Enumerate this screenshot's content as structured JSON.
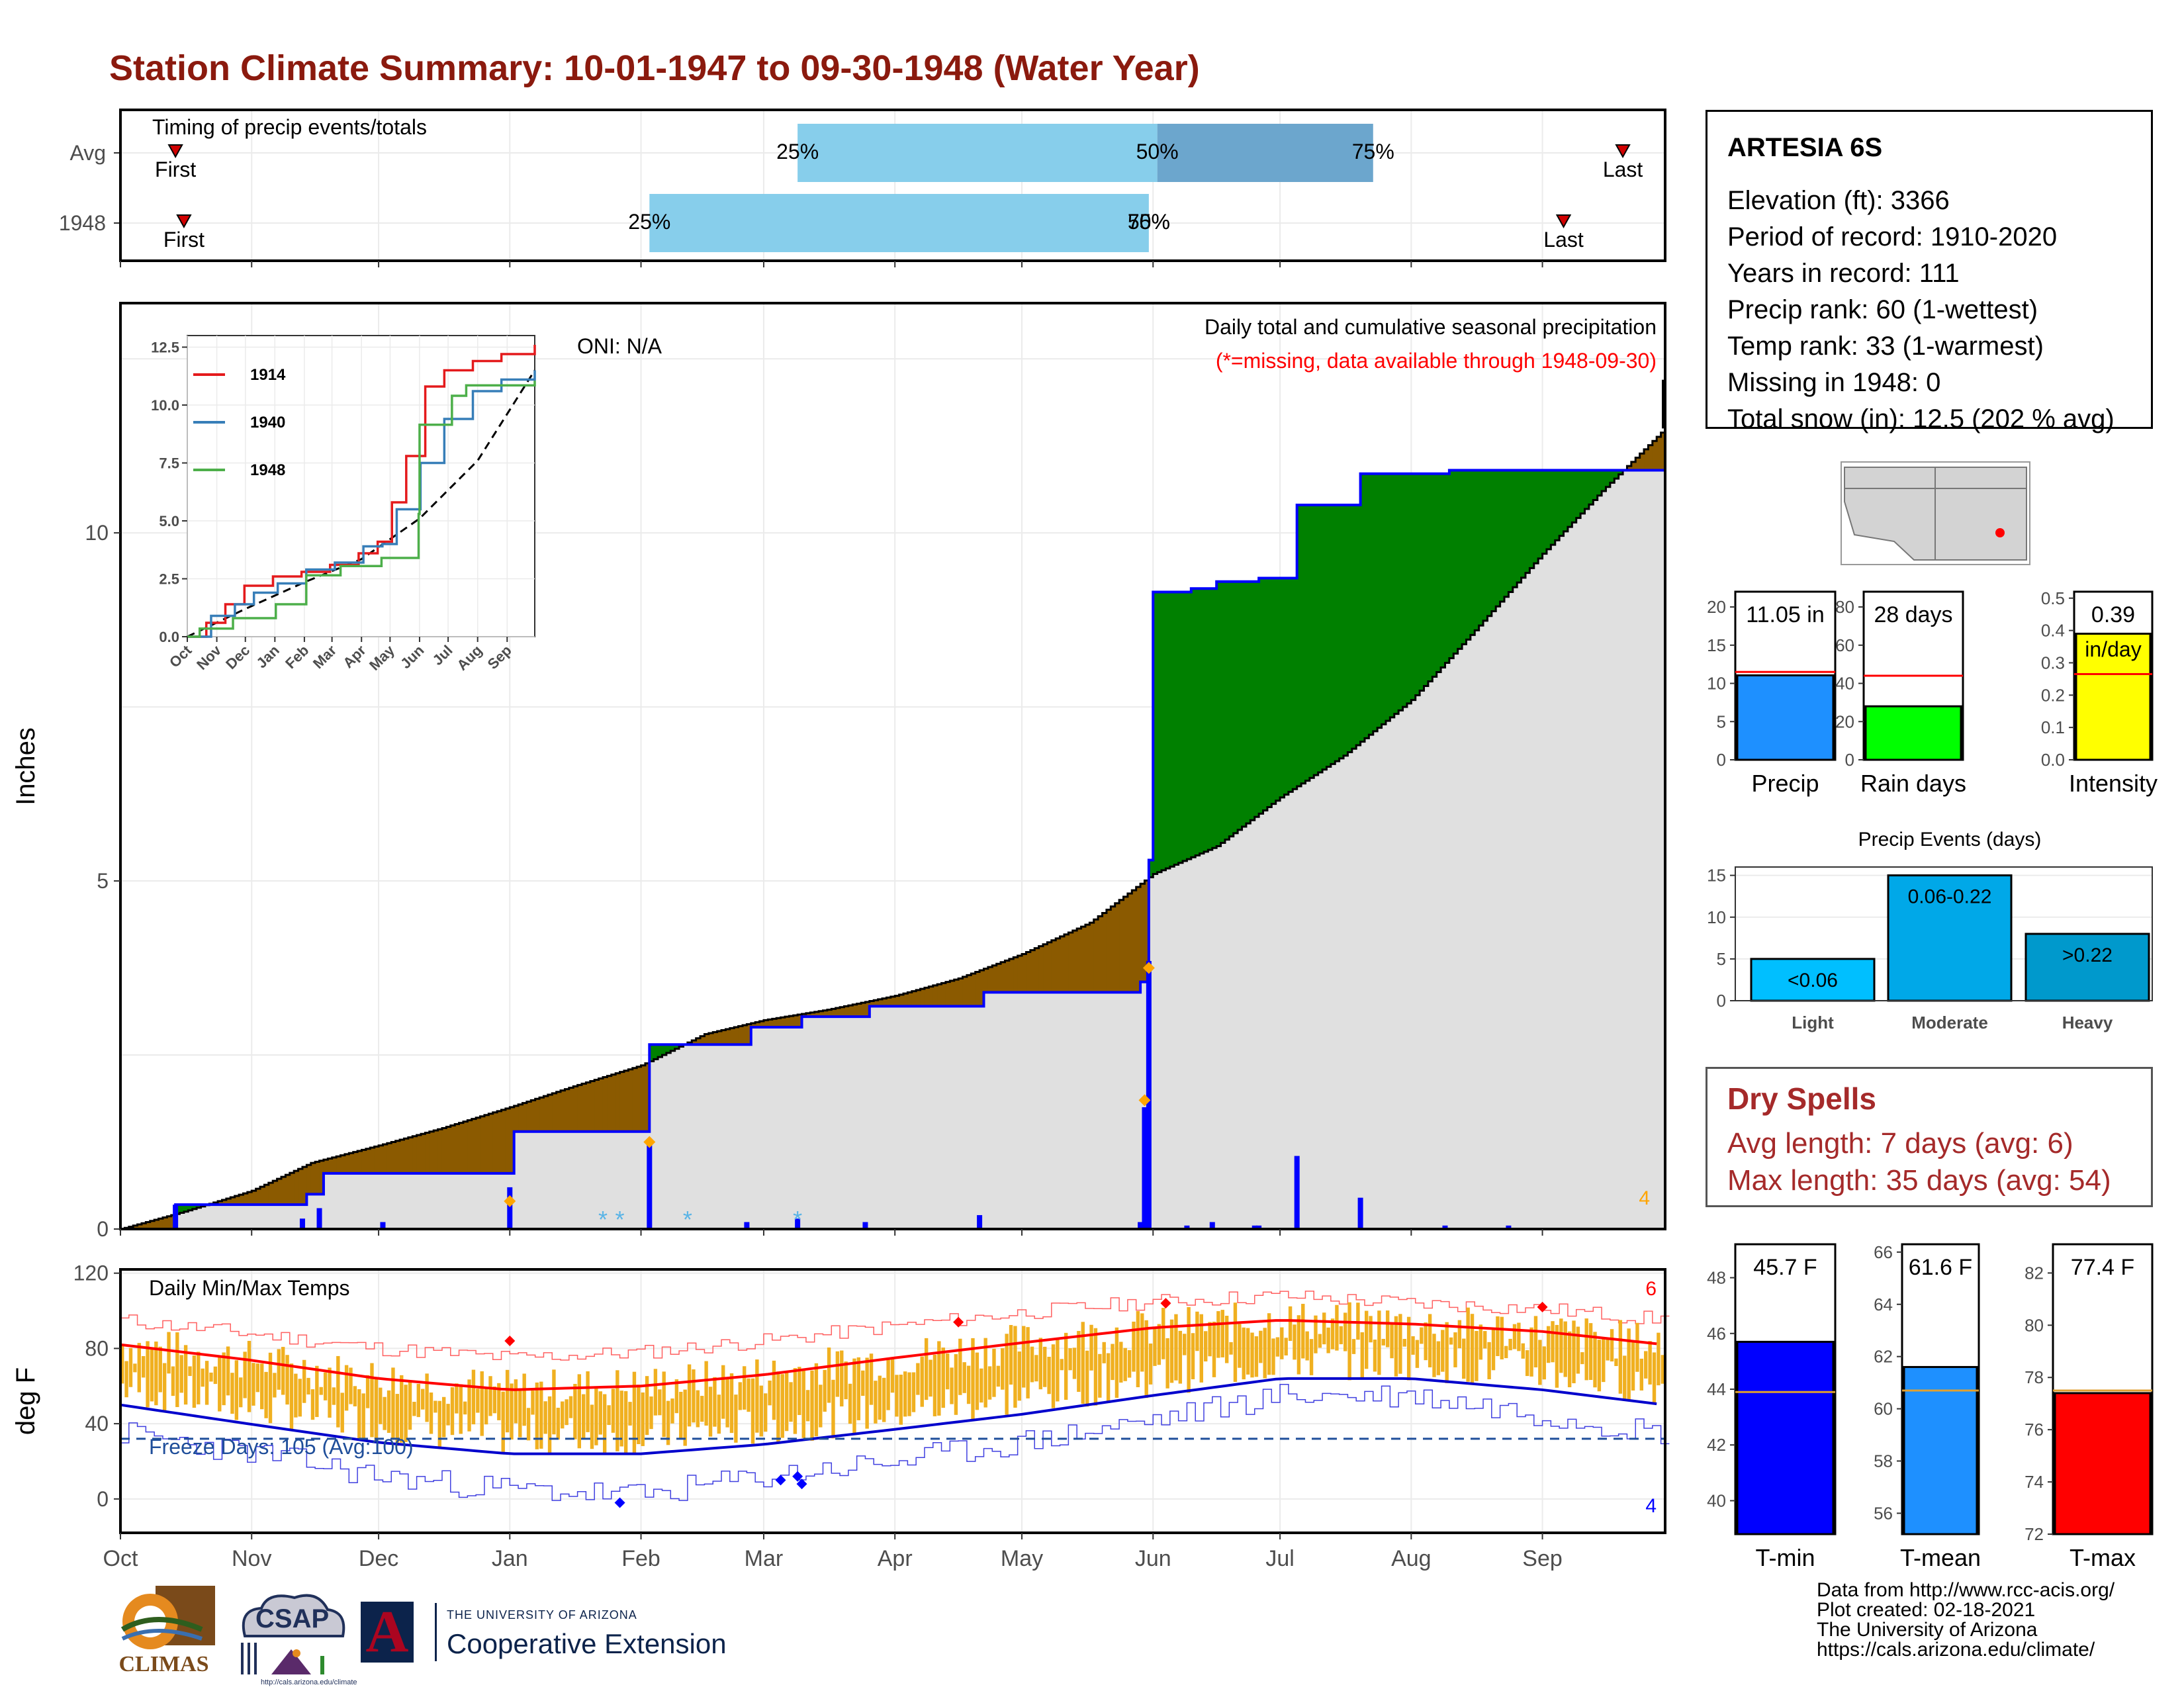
{
  "title": "Station Climate Summary: 10-01-1947 to 09-30-1948 (Water Year)",
  "station": {
    "name": "ARTESIA 6S",
    "lines": [
      "Elevation (ft): 3366",
      "Period of record: 1910-2020",
      "Years in record: 111",
      "Precip rank: 60 (1-wettest)",
      "Temp rank: 33 (1-warmest)",
      "Missing in 1948: 0",
      "Total snow (in): 12.5 (202 % avg)"
    ]
  },
  "dry_spells": {
    "title": "Dry Spells",
    "avg": "Avg length: 7 days (avg: 6)",
    "max": "Max length: 35 days (avg: 54)"
  },
  "credits": {
    "line1": "Data from http://www.rcc-acis.org/",
    "line2": "Plot created: 02-18-2021",
    "line3": "The University of Arizona",
    "line4": "https://cals.arizona.edu/climate/"
  },
  "logos": {
    "climas": "CLIMAS",
    "csap": "CSAP",
    "csap_url": "http://cals.arizona.edu/climate",
    "ua_top": "THE UNIVERSITY OF ARIZONA",
    "ua_bottom": "Cooperative Extension",
    "ua_letter": "A"
  },
  "colors": {
    "title": "#8B1A0E",
    "below_normal": "#8B5A00",
    "above_normal": "#008000",
    "cum_line": "#0000FF",
    "avg_fill": "#E0E0E0",
    "tmax_line": "#FF0000",
    "tmin_line": "#0000CC",
    "temp_bars": "#F0B020"
  },
  "chart_data": [
    {
      "type": "bar",
      "name": "timing",
      "label": "Timing of precip events/totals",
      "rows": [
        {
          "label": "Avg",
          "p25": "25%",
          "p50": "50%",
          "p75": "75%",
          "first": "First",
          "last": "Last",
          "first_x": 13,
          "p25_x": 160,
          "p50_x": 245,
          "p75_x": 296,
          "last_x": 355
        },
        {
          "label": "1948",
          "p25": "25%",
          "p50": "50%",
          "p75": "75%",
          "first": "First",
          "last": "Last",
          "first_x": 15,
          "p25_x": 125,
          "p50_x": 243,
          "p75_x": 243,
          "last_x": 341
        }
      ],
      "xlim": [
        0,
        365
      ]
    },
    {
      "type": "area",
      "name": "cumulative_precip",
      "title": "Daily total and cumulative seasonal precipitation",
      "subtitle": "(*=missing, data available through 1948-09-30)",
      "oni": "ONI: N/A",
      "ylabel": "Inches",
      "ylim": [
        0,
        12.5
      ],
      "yticks": [
        0,
        5,
        10
      ],
      "months": [
        "Oct",
        "Nov",
        "Dec",
        "Jan",
        "Feb",
        "Mar",
        "Apr",
        "May",
        "Jun",
        "Jul",
        "Aug",
        "Sep"
      ],
      "month_days": [
        0,
        31,
        61,
        92,
        123,
        152,
        183,
        213,
        244,
        274,
        305,
        336
      ],
      "xlim": [
        0,
        365
      ],
      "corner_label": "4",
      "avg_cum": [
        [
          0,
          0
        ],
        [
          15,
          0.25
        ],
        [
          31,
          0.55
        ],
        [
          45,
          0.95
        ],
        [
          61,
          1.2
        ],
        [
          76,
          1.45
        ],
        [
          92,
          1.75
        ],
        [
          107,
          2.05
        ],
        [
          123,
          2.35
        ],
        [
          138,
          2.8
        ],
        [
          152,
          3.0
        ],
        [
          167,
          3.15
        ],
        [
          183,
          3.35
        ],
        [
          198,
          3.6
        ],
        [
          213,
          3.95
        ],
        [
          229,
          4.4
        ],
        [
          244,
          5.1
        ],
        [
          259,
          5.5
        ],
        [
          274,
          6.2
        ],
        [
          289,
          6.8
        ],
        [
          305,
          7.6
        ],
        [
          320,
          8.6
        ],
        [
          336,
          9.7
        ],
        [
          350,
          10.6
        ],
        [
          365,
          11.5
        ]
      ],
      "obs_cum": [
        [
          0,
          0
        ],
        [
          12,
          0
        ],
        [
          13,
          0.35
        ],
        [
          43,
          0.35
        ],
        [
          44,
          0.5
        ],
        [
          47,
          0.5
        ],
        [
          48,
          0.8
        ],
        [
          92,
          0.8
        ],
        [
          93,
          1.4
        ],
        [
          124,
          1.4
        ],
        [
          125,
          2.65
        ],
        [
          148,
          2.65
        ],
        [
          149,
          2.9
        ],
        [
          160,
          2.9
        ],
        [
          161,
          3.05
        ],
        [
          176,
          3.05
        ],
        [
          177,
          3.2
        ],
        [
          203,
          3.2
        ],
        [
          204,
          3.4
        ],
        [
          240,
          3.4
        ],
        [
          241,
          3.55
        ],
        [
          243,
          5.3
        ],
        [
          244,
          9.15
        ],
        [
          252,
          9.15
        ],
        [
          253,
          9.2
        ],
        [
          258,
          9.2
        ],
        [
          259,
          9.3
        ],
        [
          268,
          9.3
        ],
        [
          269,
          9.35
        ],
        [
          277,
          9.35
        ],
        [
          278,
          10.4
        ],
        [
          292,
          10.4
        ],
        [
          293,
          10.85
        ],
        [
          313,
          10.85
        ],
        [
          314,
          10.9
        ],
        [
          365,
          11.05
        ]
      ],
      "daily": [
        [
          13,
          0.35
        ],
        [
          43,
          0.15
        ],
        [
          47,
          0.3
        ],
        [
          62,
          0.1
        ],
        [
          92,
          0.6
        ],
        [
          125,
          1.25
        ],
        [
          148,
          0.1
        ],
        [
          160,
          0.15
        ],
        [
          176,
          0.1
        ],
        [
          203,
          0.2
        ],
        [
          241,
          0.1
        ],
        [
          242,
          1.75
        ],
        [
          243,
          3.85
        ],
        [
          252,
          0.05
        ],
        [
          258,
          0.1
        ],
        [
          268,
          0.05
        ],
        [
          269,
          0.05
        ],
        [
          278,
          1.05
        ],
        [
          293,
          0.45
        ],
        [
          313,
          0.05
        ],
        [
          328,
          0.05
        ]
      ],
      "snow_days": [
        114,
        118,
        134,
        160
      ],
      "diamonds": [
        [
          92,
          0.4
        ],
        [
          125,
          1.25
        ],
        [
          242,
          1.85
        ],
        [
          243,
          3.75
        ]
      ]
    },
    {
      "type": "line",
      "name": "inset_cumulative",
      "series": [
        {
          "name": "1914",
          "color": "#E41A1C",
          "points": [
            [
              0,
              0
            ],
            [
              20,
              0.6
            ],
            [
              40,
              1.4
            ],
            [
              60,
              2.2
            ],
            [
              90,
              2.6
            ],
            [
              120,
              2.8
            ],
            [
              150,
              3.1
            ],
            [
              180,
              3.6
            ],
            [
              200,
              4.1
            ],
            [
              215,
              5.8
            ],
            [
              230,
              7.8
            ],
            [
              250,
              10.8
            ],
            [
              270,
              11.5
            ],
            [
              300,
              11.9
            ],
            [
              330,
              12.2
            ],
            [
              365,
              12.6
            ]
          ]
        },
        {
          "name": "1940",
          "color": "#377EB8",
          "points": [
            [
              0,
              0
            ],
            [
              25,
              0.9
            ],
            [
              50,
              1.4
            ],
            [
              70,
              1.9
            ],
            [
              95,
              2.3
            ],
            [
              125,
              2.9
            ],
            [
              155,
              3.2
            ],
            [
              185,
              3.9
            ],
            [
              205,
              4.0
            ],
            [
              220,
              5.5
            ],
            [
              245,
              7.5
            ],
            [
              270,
              9.4
            ],
            [
              300,
              10.6
            ],
            [
              330,
              11.1
            ],
            [
              365,
              11.5
            ]
          ]
        },
        {
          "name": "1948",
          "color": "#4DAF4A",
          "points": [
            [
              0,
              0
            ],
            [
              13,
              0.35
            ],
            [
              48,
              0.8
            ],
            [
              93,
              1.4
            ],
            [
              125,
              2.65
            ],
            [
              161,
              3.05
            ],
            [
              204,
              3.4
            ],
            [
              243,
              5.3
            ],
            [
              244,
              9.15
            ],
            [
              278,
              10.4
            ],
            [
              293,
              10.85
            ],
            [
              365,
              11.05
            ]
          ]
        }
      ],
      "avg_points": [
        [
          0,
          0
        ],
        [
          61,
          1.2
        ],
        [
          123,
          2.35
        ],
        [
          183,
          3.35
        ],
        [
          244,
          5.1
        ],
        [
          305,
          7.6
        ],
        [
          365,
          11.5
        ]
      ],
      "yticks": [
        0.0,
        2.5,
        5.0,
        7.5,
        10.0,
        12.5
      ],
      "ytick_labels": [
        "0.0",
        "2.5",
        "5.0",
        "7.5",
        "10.0",
        "12.5"
      ],
      "months": [
        "Oct",
        "Nov",
        "Dec",
        "Jan",
        "Feb",
        "Mar",
        "Apr",
        "May",
        "Jun",
        "Jul",
        "Aug",
        "Sep"
      ],
      "ylim": [
        0,
        12.5
      ]
    },
    {
      "type": "line",
      "name": "daily_temps",
      "title": "Daily Min/Max Temps",
      "ylabel": "deg F",
      "ylim": [
        -18,
        122
      ],
      "yticks": [
        0,
        40,
        80,
        120
      ],
      "freeze_line": 32,
      "freeze_label": "Freeze Days: 105 (Avg:100)",
      "label_max": "6",
      "label_min": "4",
      "avg_max": [
        [
          0,
          82
        ],
        [
          30,
          74
        ],
        [
          61,
          64
        ],
        [
          92,
          58
        ],
        [
          123,
          60
        ],
        [
          152,
          66
        ],
        [
          183,
          75
        ],
        [
          213,
          83
        ],
        [
          244,
          91
        ],
        [
          274,
          95
        ],
        [
          305,
          93
        ],
        [
          336,
          89
        ],
        [
          365,
          82
        ]
      ],
      "avg_min": [
        [
          0,
          50
        ],
        [
          30,
          40
        ],
        [
          61,
          30
        ],
        [
          92,
          24
        ],
        [
          123,
          24
        ],
        [
          152,
          29
        ],
        [
          183,
          37
        ],
        [
          213,
          45
        ],
        [
          244,
          55
        ],
        [
          274,
          64
        ],
        [
          305,
          64
        ],
        [
          336,
          58
        ],
        [
          365,
          50
        ]
      ],
      "rec_max": [
        [
          0,
          95
        ],
        [
          30,
          88
        ],
        [
          61,
          80
        ],
        [
          92,
          75
        ],
        [
          123,
          78
        ],
        [
          152,
          84
        ],
        [
          183,
          92
        ],
        [
          213,
          99
        ],
        [
          244,
          105
        ],
        [
          274,
          108
        ],
        [
          305,
          104
        ],
        [
          336,
          101
        ],
        [
          365,
          95
        ]
      ],
      "rec_min": [
        [
          0,
          35
        ],
        [
          30,
          25
        ],
        [
          61,
          12
        ],
        [
          92,
          5
        ],
        [
          123,
          2
        ],
        [
          152,
          12
        ],
        [
          183,
          20
        ],
        [
          213,
          30
        ],
        [
          244,
          42
        ],
        [
          274,
          55
        ],
        [
          305,
          55
        ],
        [
          336,
          45
        ],
        [
          365,
          35
        ]
      ],
      "red_diamonds": [
        [
          92,
          84
        ],
        [
          198,
          94
        ],
        [
          247,
          104
        ],
        [
          336,
          102
        ]
      ],
      "blue_diamonds": [
        [
          118,
          -2
        ],
        [
          156,
          10
        ],
        [
          160,
          12
        ],
        [
          161,
          8
        ]
      ]
    },
    {
      "type": "bar",
      "name": "totals",
      "panels": [
        {
          "label": "Precip",
          "value": 11.05,
          "value_label": "11.05 in",
          "avg": 11.5,
          "ylim": [
            0,
            22
          ],
          "yticks": [
            0,
            5,
            10,
            15,
            20
          ],
          "color": "#1E90FF"
        },
        {
          "label": "Rain days",
          "value": 28,
          "value_label": "28 days",
          "avg": 44,
          "ylim": [
            0,
            88
          ],
          "yticks": [
            0,
            20,
            40,
            60,
            80
          ],
          "color": "#00FF00"
        },
        {
          "label": "Intensity",
          "value": 0.39,
          "value_label": "0.39",
          "unit": "in/day",
          "avg": 0.265,
          "ylim": [
            0,
            0.52
          ],
          "yticks": [
            0.0,
            0.1,
            0.2,
            0.3,
            0.4,
            0.5
          ],
          "ytick_labels": [
            "0.0",
            "0.1",
            "0.2",
            "0.3",
            "0.4",
            "0.5"
          ],
          "color": "#FFFF00"
        }
      ]
    },
    {
      "type": "bar",
      "name": "precip_events",
      "title": "Precip Events (days)",
      "categories": [
        "Light",
        "Moderate",
        "Heavy"
      ],
      "values": [
        5,
        15,
        8
      ],
      "bar_labels": [
        "<0.06",
        "0.06-0.22",
        ">0.22"
      ],
      "colors": [
        "#00BFFF",
        "#00A8E8",
        "#0099CC"
      ],
      "ylim": [
        0,
        16
      ],
      "yticks": [
        0,
        5,
        10,
        15
      ]
    },
    {
      "type": "bar",
      "name": "temp_means",
      "panels": [
        {
          "label": "T-min",
          "value": 45.7,
          "value_label": "45.7 F",
          "avg": 43.9,
          "ylim": [
            38.8,
            49.2
          ],
          "yticks": [
            40,
            42,
            44,
            46,
            48
          ],
          "color": "#0000FF"
        },
        {
          "label": "T-mean",
          "value": 61.6,
          "value_label": "61.6 F",
          "avg": 60.7,
          "ylim": [
            55.2,
            66.3
          ],
          "yticks": [
            56,
            58,
            60,
            62,
            64,
            66
          ],
          "color": "#1E90FF"
        },
        {
          "label": "T-max",
          "value": 77.4,
          "value_label": "77.4 F",
          "avg": 77.5,
          "ylim": [
            72,
            83.1
          ],
          "yticks": [
            72,
            74,
            76,
            78,
            80,
            82
          ],
          "color": "#FF0000"
        }
      ]
    }
  ]
}
